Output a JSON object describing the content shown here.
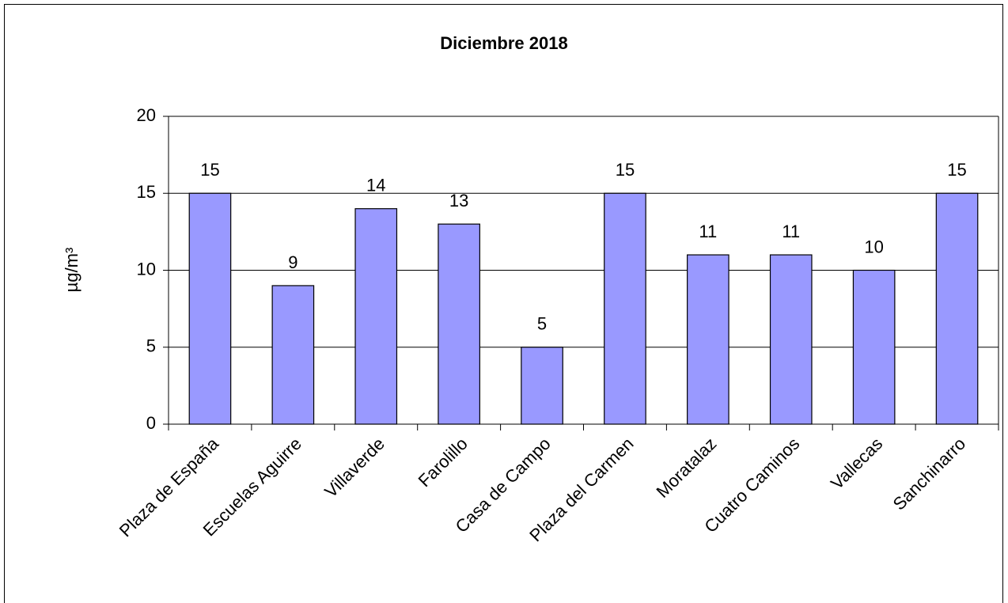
{
  "chart_data": {
    "type": "bar",
    "title": "Diciembre 2018",
    "y_label": "µg/m³",
    "categories": [
      "Plaza de España",
      "Escuelas Aguirre",
      "Villaverde",
      "Farolillo",
      "Casa de Campo",
      "Plaza del Carmen",
      "Moratalaz",
      "Cuatro Caminos",
      "Vallecas",
      "Sanchinarro"
    ],
    "values": [
      15,
      9,
      14,
      13,
      5,
      15,
      11,
      11,
      10,
      15
    ],
    "color": "#9999ff",
    "ylim": [
      0,
      20
    ],
    "yticks": [
      0,
      5,
      10,
      15,
      20
    ],
    "grid": true
  }
}
